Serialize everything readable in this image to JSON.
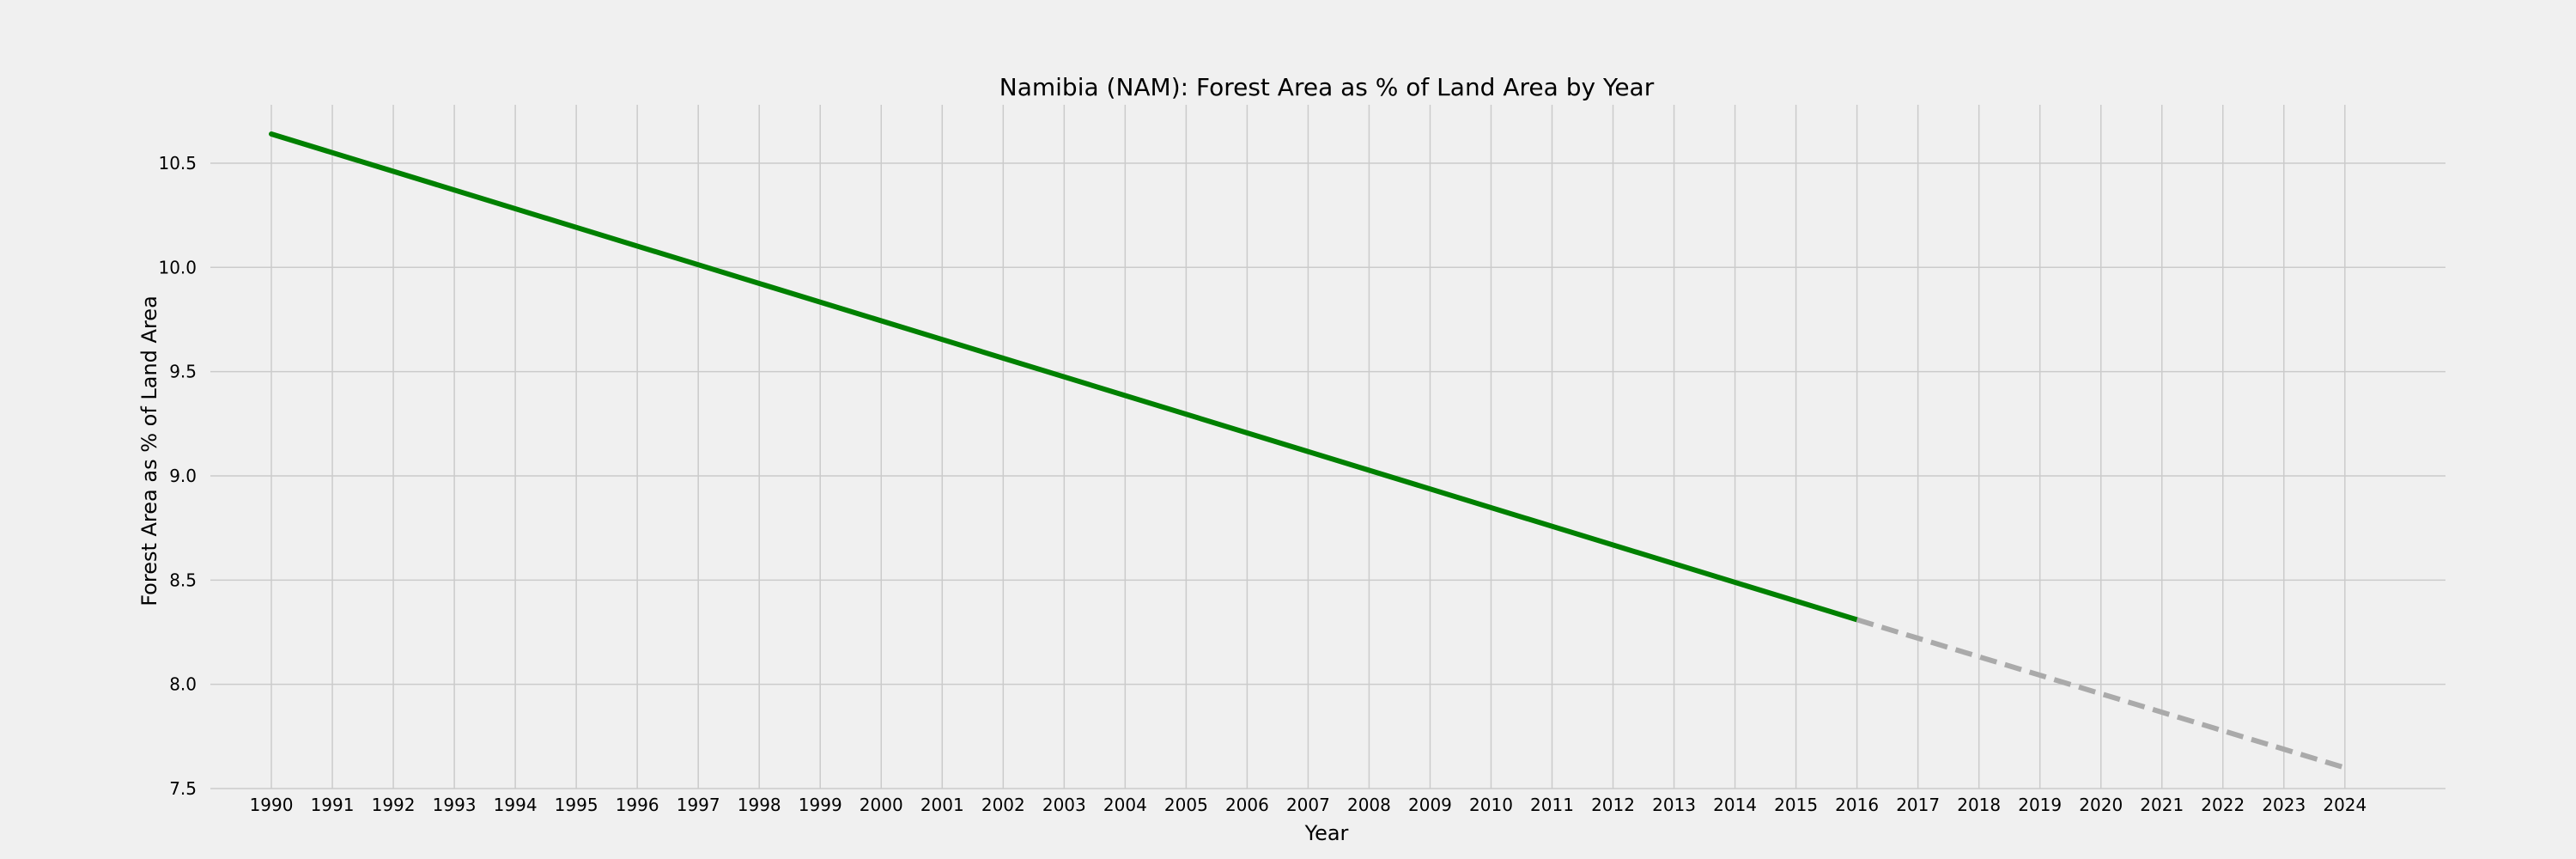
{
  "chart_data": {
    "type": "line",
    "title": "Namibia (NAM): Forest Area as % of Land Area by Year",
    "xlabel": "Year",
    "ylabel": "Forest Area as % of Land Area",
    "x": [
      1990,
      1991,
      1992,
      1993,
      1994,
      1995,
      1996,
      1997,
      1998,
      1999,
      2000,
      2001,
      2002,
      2003,
      2004,
      2005,
      2006,
      2007,
      2008,
      2009,
      2010,
      2011,
      2012,
      2013,
      2014,
      2015,
      2016,
      2017,
      2018,
      2019,
      2020,
      2021,
      2022,
      2023,
      2024
    ],
    "xlim": [
      1989,
      2025.65
    ],
    "ylim": [
      7.5,
      10.78
    ],
    "yticks": [
      7.5,
      8.0,
      8.5,
      9.0,
      9.5,
      10.0,
      10.5
    ],
    "grid": true,
    "series": [
      {
        "style": "solid",
        "color": "#008000",
        "x": [
          1990,
          2016
        ],
        "y": [
          10.64,
          8.31
        ]
      },
      {
        "style": "dashed",
        "color": "#aaaaaa",
        "x": [
          2016,
          2024
        ],
        "y": [
          8.31,
          7.6
        ]
      }
    ]
  }
}
